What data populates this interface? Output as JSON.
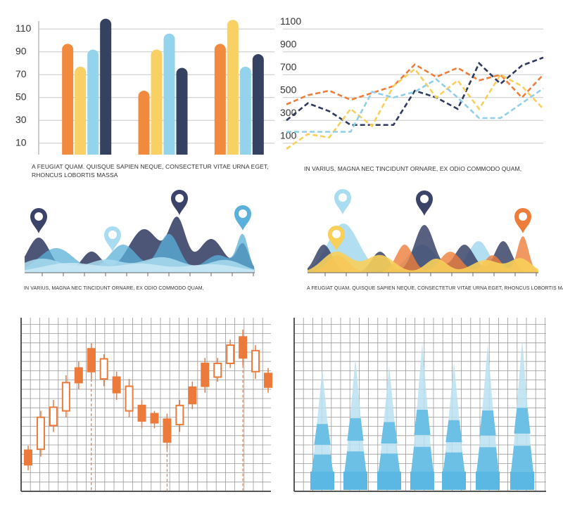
{
  "chart_data": [
    {
      "type": "bar",
      "caption": "A FEUGIAT QUAM. QUISQUE SAPIEN NEQUE, CONSECTETUR VITAE URNA EGET, RHONCUS LOBORTIS MASSA",
      "categories": [
        null,
        null,
        null
      ],
      "series": [
        {
          "color": "#f28a3e",
          "values": [
            97,
            56,
            97
          ]
        },
        {
          "color": "#f8d063",
          "values": [
            77,
            92,
            118
          ]
        },
        {
          "color": "#93d3ec",
          "values": [
            92,
            106,
            77
          ]
        },
        {
          "color": "#344160",
          "values": [
            119,
            76,
            88
          ]
        }
      ],
      "ylim": [
        0,
        120
      ],
      "yticks": [
        10,
        30,
        50,
        70,
        90,
        110
      ],
      "grid": true
    },
    {
      "type": "line",
      "caption": "IN VARIUS, MAGNA NEC TINCIDUNT ORNARE, EX ODIO COMMODO QUAM,",
      "categories": [
        null,
        null,
        null,
        null,
        null,
        null,
        null,
        null,
        null,
        null,
        null,
        null,
        null
      ],
      "series": [
        {
          "color": "#ee7d3b",
          "values": [
            440,
            520,
            560,
            480,
            540,
            600,
            790,
            680,
            760,
            650,
            700,
            500,
            700
          ]
        },
        {
          "color": "#2f3b5e",
          "values": [
            300,
            450,
            380,
            260,
            260,
            260,
            560,
            500,
            400,
            800,
            620,
            780,
            850
          ]
        },
        {
          "color": "#f8cf5a",
          "values": [
            50,
            180,
            150,
            400,
            250,
            600,
            750,
            500,
            650,
            400,
            700,
            600,
            400
          ]
        },
        {
          "color": "#90cfe8",
          "values": [
            200,
            200,
            200,
            200,
            550,
            500,
            550,
            660,
            500,
            320,
            320,
            450,
            580
          ]
        }
      ],
      "ylim": [
        0,
        1200
      ],
      "yticks": [
        100,
        300,
        500,
        700,
        900,
        1100
      ],
      "grid": true,
      "dashed": true
    },
    {
      "type": "candlestick",
      "color": "#ec7a3a",
      "ylim": [
        0,
        19
      ],
      "grid": true,
      "open": [
        4.5,
        4.6,
        7.2,
        8.8,
        13.5,
        15.6,
        12.3,
        12.5,
        8.8,
        9.4,
        8.5,
        7.9,
        7.3,
        11.4,
        14.0,
        12.5,
        14.0,
        16.9,
        13.1,
        12.9
      ],
      "close": [
        2.9,
        8.1,
        9.2,
        11.9,
        11.9,
        13.1,
        14.5,
        10.8,
        11.5,
        7.7,
        7.5,
        5.4,
        9.4,
        9.6,
        11.5,
        14.0,
        16.0,
        14.6,
        15.4,
        11.4
      ],
      "high": [
        5.0,
        8.8,
        10.0,
        12.7,
        14.2,
        16.2,
        15.0,
        13.1,
        12.3,
        10.0,
        8.8,
        8.5,
        10.0,
        12.0,
        14.6,
        14.6,
        16.6,
        17.7,
        16.0,
        13.5
      ],
      "low": [
        2.3,
        3.8,
        6.5,
        8.1,
        11.2,
        12.3,
        11.5,
        10.0,
        8.1,
        6.9,
        6.9,
        4.6,
        6.5,
        9.0,
        10.8,
        12.0,
        13.5,
        13.8,
        12.3,
        10.8
      ]
    }
  ],
  "panel_captions": [
    "IN VARIUS, MAGNA NEC TINCIDUNT ORNARE, EX ODIO COMMODO QUAM,",
    "A FEUGIAT QUAM. QUISQUE SAPIEN NEQUE, CONSECTETUR VITAE URNA EGET, RHONCUS LOBORTIS MASSA"
  ]
}
